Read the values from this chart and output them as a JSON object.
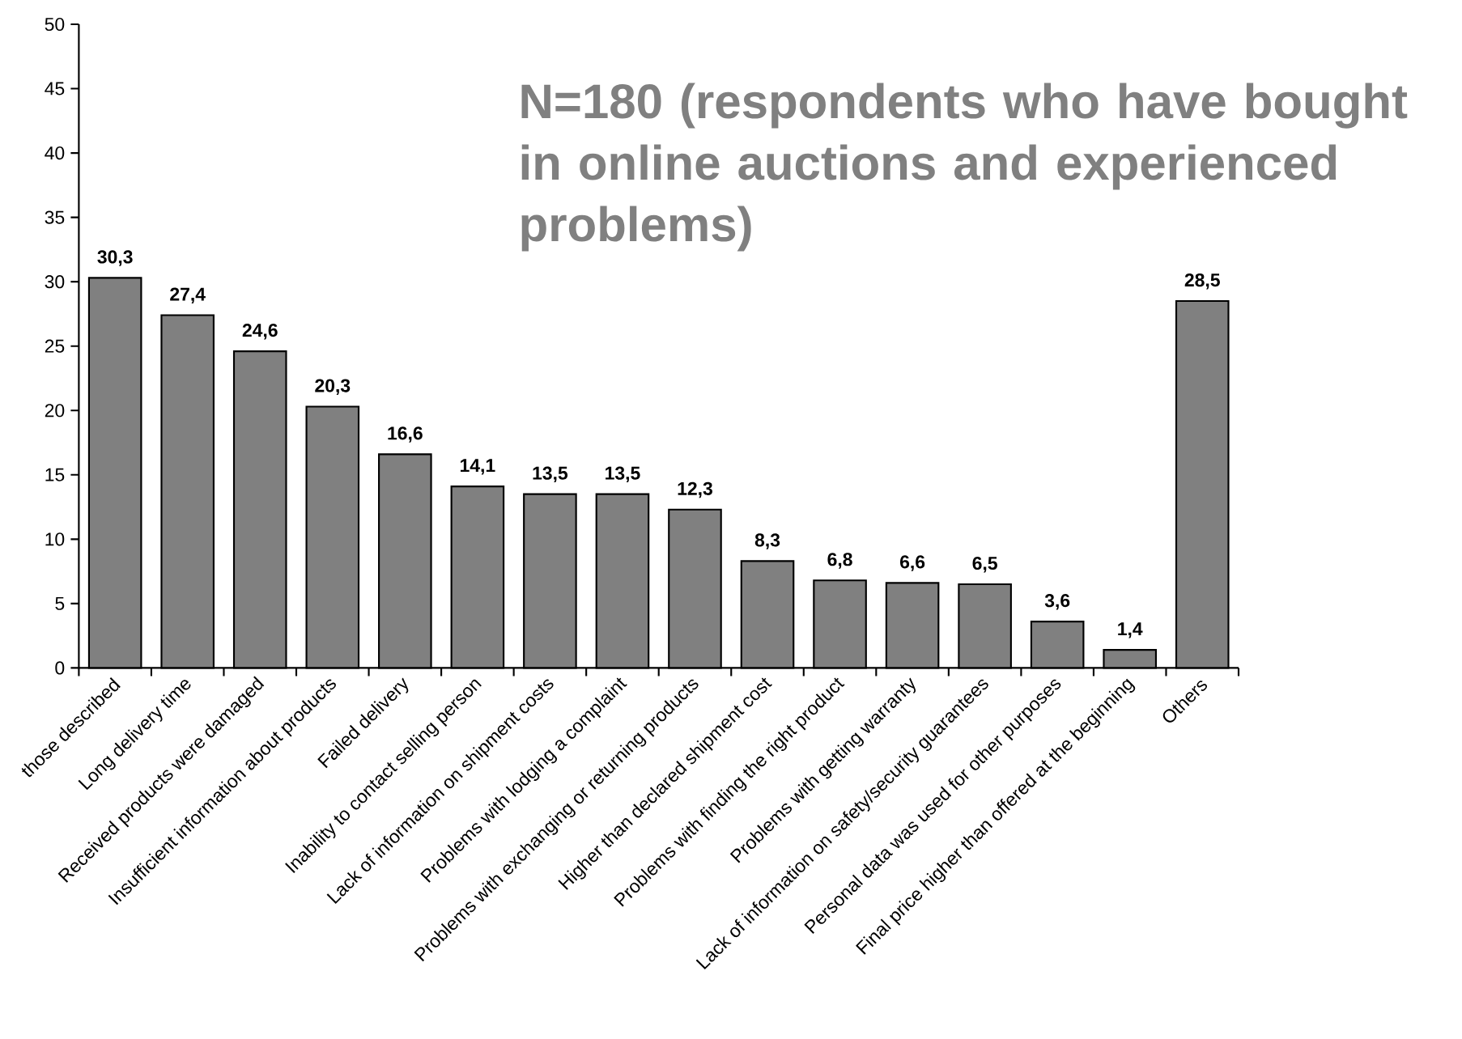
{
  "chart_data": {
    "type": "bar",
    "title": "N=180 (respondents who have bought in online auctions and experienced problems)",
    "categories": [
      "those described",
      "Long delivery time",
      "Received products were damaged",
      "Insufficient information about products",
      "Failed delivery",
      "Inability to contact selling person",
      "Lack of information on shipment costs",
      "Problems with lodging a complaint",
      "Problems with exchanging or returning products",
      "Higher than declared shipment cost",
      "Problems with finding the right product",
      "Problems with getting warranty",
      "Lack of information on safety/security guarantees",
      "Personal data was used for other purposes",
      "Final price higher than offered at the beginning",
      "Others"
    ],
    "values": [
      30.3,
      27.4,
      24.6,
      20.3,
      16.6,
      14.1,
      13.5,
      13.5,
      12.3,
      8.3,
      6.8,
      6.6,
      6.5,
      3.6,
      1.4,
      28.5
    ],
    "value_labels": [
      "30,3",
      "27,4",
      "24,6",
      "20,3",
      "16,6",
      "14,1",
      "13,5",
      "13,5",
      "12,3",
      "8,3",
      "6,8",
      "6,6",
      "6,5",
      "3,6",
      "1,4",
      "28,5"
    ],
    "color": "#808080",
    "ylim": [
      0,
      50
    ],
    "yticks": [
      0,
      5,
      10,
      15,
      20,
      25,
      30,
      35,
      40,
      45,
      50
    ]
  }
}
